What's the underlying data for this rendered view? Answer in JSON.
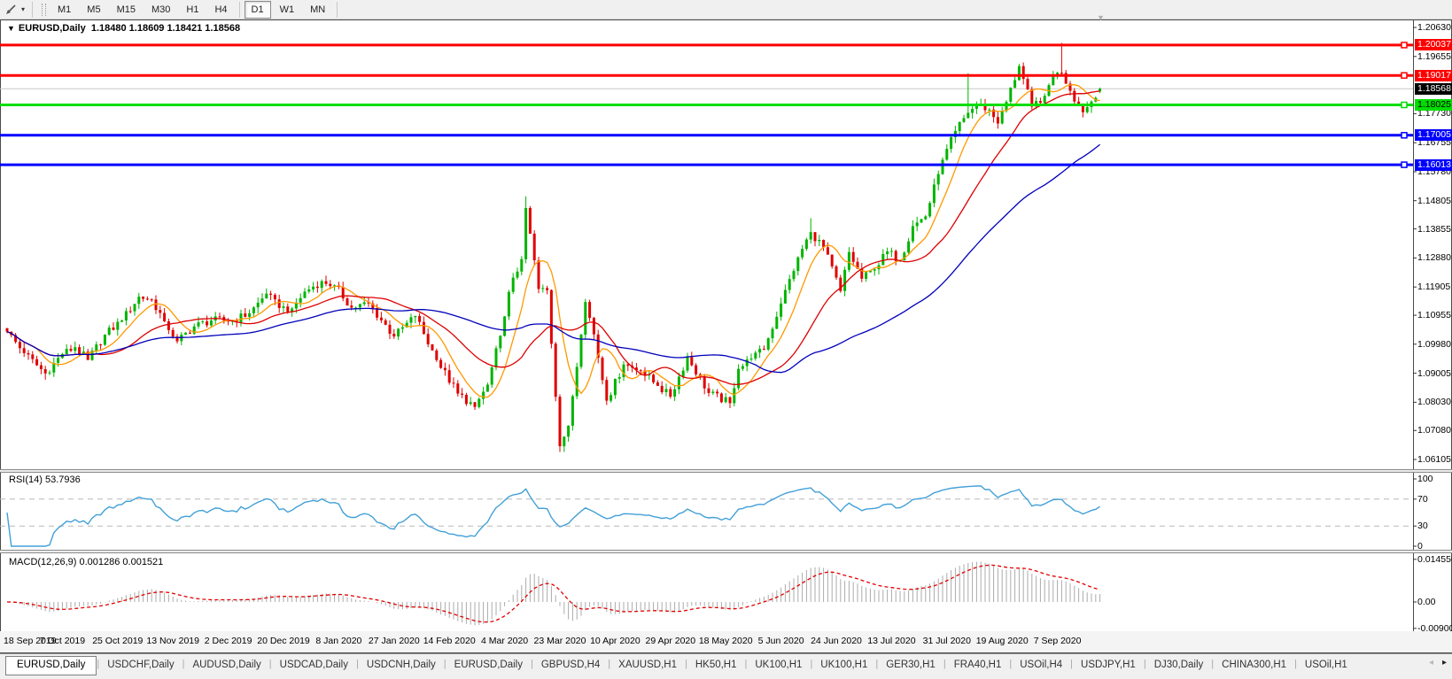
{
  "toolbar": {
    "dropdown_glyph": "▾",
    "timeframes": [
      {
        "label": "M1",
        "active": false
      },
      {
        "label": "M5",
        "active": false
      },
      {
        "label": "M15",
        "active": false
      },
      {
        "label": "M30",
        "active": false
      },
      {
        "label": "H1",
        "active": false
      },
      {
        "label": "H4",
        "active": false
      },
      {
        "label": "D1",
        "active": true
      },
      {
        "label": "W1",
        "active": false
      },
      {
        "label": "MN",
        "active": false
      }
    ]
  },
  "chart": {
    "title_marker": "▼",
    "title": "EURUSD,Daily",
    "ohlc_text": "1.18480 1.18609 1.18421 1.18568"
  },
  "price_axis": {
    "ticks": [
      "1.20630",
      "1.19655",
      "1.17730",
      "1.16755",
      "1.15780",
      "1.14805",
      "1.13855",
      "1.12880",
      "1.11905",
      "1.10955",
      "1.09980",
      "1.09005",
      "1.08030",
      "1.07080",
      "1.06105"
    ]
  },
  "hlines": [
    {
      "price": 1.20037,
      "label": "1.20037",
      "color": "#ff0000",
      "text_color": "#ffffff"
    },
    {
      "price": 1.19017,
      "label": "1.19017",
      "color": "#ff0000",
      "text_color": "#ffffff"
    },
    {
      "price": 1.18025,
      "label": "1.18025",
      "color": "#00dd00",
      "text_color": "#000000"
    },
    {
      "price": 1.17005,
      "label": "1.17005",
      "color": "#0000ff",
      "text_color": "#ffffff"
    },
    {
      "price": 1.16013,
      "label": "1.16013",
      "color": "#0000ff",
      "text_color": "#ffffff"
    }
  ],
  "current_price": {
    "value": 1.18568,
    "label": "1.18568",
    "line_color": "#c8c8c8",
    "bg": "#000000",
    "text_color": "#ffffff"
  },
  "rsi_panel": {
    "label": "RSI(14) 53.7936",
    "line_color": "#42a0d8",
    "levels": [
      70,
      30
    ],
    "scale_labels": [
      "100",
      "70",
      "30",
      "0"
    ]
  },
  "macd_panel": {
    "label": "MACD(12,26,9) 0.001286 0.001521",
    "histogram_color": "#ababab",
    "signal_color": "#e00000",
    "scale_labels": [
      "0.014556",
      "0.00",
      "-0.009001"
    ]
  },
  "date_axis": {
    "labels": [
      "18 Sep 2019",
      "7 Oct 2019",
      "25 Oct 2019",
      "13 Nov 2019",
      "2 Dec 2019",
      "20 Dec 2019",
      "8 Jan 2020",
      "27 Jan 2020",
      "14 Feb 2020",
      "4 Mar 2020",
      "23 Mar 2020",
      "10 Apr 2020",
      "29 Apr 2020",
      "18 May 2020",
      "5 Jun 2020",
      "24 Jun 2020",
      "13 Jul 2020",
      "31 Jul 2020",
      "19 Aug 2020",
      "7 Sep 2020"
    ]
  },
  "tabs": {
    "items": [
      {
        "label": "EURUSD,Daily",
        "active": true
      },
      {
        "label": "USDCHF,Daily",
        "active": false
      },
      {
        "label": "AUDUSD,Daily",
        "active": false
      },
      {
        "label": "USDCAD,Daily",
        "active": false
      },
      {
        "label": "USDCNH,Daily",
        "active": false
      },
      {
        "label": "EURUSD,Daily",
        "active": false
      },
      {
        "label": "GBPUSD,H4",
        "active": false
      },
      {
        "label": "XAUUSD,H1",
        "active": false
      },
      {
        "label": "HK50,H1",
        "active": false
      },
      {
        "label": "UK100,H1",
        "active": false
      },
      {
        "label": "UK100,H1",
        "active": false
      },
      {
        "label": "GER30,H1",
        "active": false
      },
      {
        "label": "FRA40,H1",
        "active": false
      },
      {
        "label": "USOil,H4",
        "active": false
      },
      {
        "label": "USDJPY,H1",
        "active": false
      },
      {
        "label": "DJ30,Daily",
        "active": false
      },
      {
        "label": "CHINA300,H1",
        "active": false
      },
      {
        "label": "USOil,H1",
        "active": false
      }
    ],
    "scroll_left": "◂",
    "scroll_right": "▸"
  },
  "chart_data": {
    "type": "candlestick",
    "symbol": "EURUSD",
    "timeframe": "Daily",
    "bars": 258,
    "visible_price_range": [
      1.06105,
      1.2063
    ],
    "bull_color": "#00b400",
    "bear_color": "#e00000",
    "last_bar": {
      "open": 1.1848,
      "high": 1.18609,
      "low": 1.18421,
      "close": 1.18568
    },
    "close_anchors": [
      [
        0,
        1.104
      ],
      [
        4,
        1.0968
      ],
      [
        9,
        1.09
      ],
      [
        13,
        1.0965
      ],
      [
        16,
        1.0988
      ],
      [
        19,
        1.0945
      ],
      [
        23,
        1.103
      ],
      [
        27,
        1.1078
      ],
      [
        31,
        1.1158
      ],
      [
        34,
        1.1148
      ],
      [
        37,
        1.1075
      ],
      [
        40,
        1.1008
      ],
      [
        44,
        1.1058
      ],
      [
        48,
        1.1078
      ],
      [
        53,
        1.1078
      ],
      [
        57,
        1.1102
      ],
      [
        61,
        1.1168
      ],
      [
        64,
        1.112
      ],
      [
        67,
        1.1118
      ],
      [
        70,
        1.1175
      ],
      [
        74,
        1.121
      ],
      [
        77,
        1.1196
      ],
      [
        81,
        1.1121
      ],
      [
        85,
        1.1135
      ],
      [
        91,
        1.1024
      ],
      [
        96,
        1.1093
      ],
      [
        101,
        1.0945
      ],
      [
        106,
        1.0832
      ],
      [
        110,
        1.0787
      ],
      [
        113,
        1.0862
      ],
      [
        116,
        1.1026
      ],
      [
        118,
        1.1174
      ],
      [
        121,
        1.1284
      ],
      [
        122,
        1.1456
      ],
      [
        124,
        1.128
      ],
      [
        125,
        1.1184
      ],
      [
        127,
        1.118
      ],
      [
        130,
        1.0655
      ],
      [
        132,
        1.0724
      ],
      [
        135,
        1.103
      ],
      [
        136,
        1.114
      ],
      [
        138,
        1.1031
      ],
      [
        141,
        1.0808
      ],
      [
        145,
        1.093
      ],
      [
        149,
        1.091
      ],
      [
        153,
        1.0858
      ],
      [
        156,
        1.0822
      ],
      [
        160,
        1.0955
      ],
      [
        165,
        1.0834
      ],
      [
        170,
        1.08
      ],
      [
        172,
        1.0915
      ],
      [
        175,
        1.095
      ],
      [
        178,
        1.098
      ],
      [
        182,
        1.1135
      ],
      [
        186,
        1.129
      ],
      [
        189,
        1.1375
      ],
      [
        192,
        1.1324
      ],
      [
        196,
        1.1177
      ],
      [
        198,
        1.1308
      ],
      [
        201,
        1.1218
      ],
      [
        204,
        1.125
      ],
      [
        207,
        1.131
      ],
      [
        210,
        1.128
      ],
      [
        213,
        1.1395
      ],
      [
        216,
        1.1428
      ],
      [
        219,
        1.157
      ],
      [
        221,
        1.1655
      ],
      [
        223,
        1.1715
      ],
      [
        226,
        1.1776
      ],
      [
        228,
        1.1803
      ],
      [
        231,
        1.1787
      ],
      [
        233,
        1.174
      ],
      [
        235,
        1.1813
      ],
      [
        238,
        1.1933
      ],
      [
        241,
        1.1797
      ],
      [
        244,
        1.1833
      ],
      [
        246,
        1.1903
      ],
      [
        248,
        1.191
      ],
      [
        250,
        1.185
      ],
      [
        253,
        1.1778
      ],
      [
        255,
        1.1814
      ],
      [
        257,
        1.18568
      ]
    ],
    "wick_overrides": {
      "9": {
        "low": 1.0879
      },
      "122": {
        "high": 1.1495
      },
      "130": {
        "low": 1.0636
      },
      "189": {
        "high": 1.1422
      },
      "226": {
        "high": 1.1909
      },
      "248": {
        "high": 1.2011
      }
    },
    "moving_averages": [
      {
        "type": "sma",
        "period": 8,
        "color": "#ff9900"
      },
      {
        "type": "sma",
        "period": 22,
        "color": "#dd0000"
      },
      {
        "type": "sma",
        "period": 55,
        "color": "#0000bb"
      }
    ],
    "indicators": [
      {
        "name": "RSI",
        "period": 14,
        "current": 53.7936
      },
      {
        "name": "MACD",
        "fast": 12,
        "slow": 26,
        "signal": 9,
        "current_macd": 0.001286,
        "current_signal": 0.001521
      }
    ]
  }
}
